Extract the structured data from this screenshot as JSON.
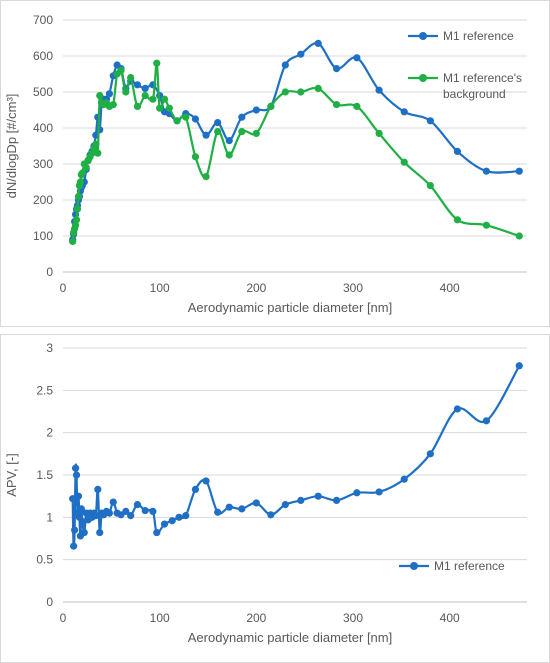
{
  "chart_data": [
    {
      "type": "line",
      "xlabel": "Aerodynamic particle diameter [nm]",
      "ylabel": "dN/dlogDp [#/cm³]",
      "xlim": [
        0,
        480
      ],
      "ylim": [
        0,
        700
      ],
      "xticks": [
        0,
        100,
        200,
        300,
        400
      ],
      "yticks": [
        0,
        100,
        200,
        300,
        400,
        500,
        600,
        700
      ],
      "grid": "horizontal",
      "legend_position": "top-right",
      "series": [
        {
          "name": "M1 reference",
          "color": "#1f6fc5",
          "x": [
            10,
            11,
            12,
            13,
            14,
            15,
            16,
            17,
            18,
            19,
            20,
            22,
            24,
            26,
            28,
            30,
            32,
            34,
            36,
            38,
            40,
            42,
            45,
            48,
            52,
            56,
            60,
            65,
            70,
            77,
            85,
            93,
            100,
            105,
            110,
            118,
            127,
            137,
            148,
            160,
            172,
            185,
            200,
            215,
            230,
            246,
            264,
            283,
            304,
            327,
            353,
            380,
            408,
            438,
            472
          ],
          "y": [
            90,
            105,
            140,
            160,
            175,
            185,
            200,
            210,
            225,
            235,
            240,
            250,
            285,
            310,
            325,
            335,
            350,
            380,
            430,
            395,
            470,
            480,
            480,
            495,
            545,
            575,
            565,
            510,
            530,
            520,
            510,
            520,
            490,
            445,
            440,
            420,
            440,
            425,
            380,
            415,
            365,
            430,
            450,
            460,
            575,
            605,
            635,
            565,
            595,
            505,
            445,
            420,
            335,
            280,
            280
          ]
        },
        {
          "name": "M1 reference's background",
          "color": "#1faf45",
          "x": [
            10,
            11,
            12,
            13,
            14,
            15,
            16,
            17,
            18,
            19,
            20,
            22,
            24,
            26,
            28,
            30,
            32,
            34,
            36,
            38,
            40,
            42,
            45,
            48,
            52,
            56,
            60,
            65,
            70,
            77,
            85,
            93,
            97,
            100,
            105,
            110,
            118,
            127,
            137,
            148,
            160,
            172,
            185,
            200,
            215,
            230,
            246,
            264,
            283,
            304,
            327,
            353,
            380,
            408,
            438,
            472
          ],
          "y": [
            85,
            110,
            120,
            130,
            145,
            175,
            210,
            240,
            250,
            270,
            275,
            300,
            290,
            310,
            320,
            330,
            345,
            355,
            330,
            490,
            470,
            465,
            470,
            460,
            465,
            550,
            560,
            500,
            540,
            460,
            490,
            480,
            580,
            455,
            480,
            455,
            420,
            430,
            320,
            265,
            390,
            325,
            390,
            385,
            460,
            500,
            500,
            510,
            465,
            460,
            385,
            305,
            240,
            145,
            130,
            100
          ]
        }
      ]
    },
    {
      "type": "line",
      "xlabel": "Aerodynamic particle diameter [nm]",
      "ylabel": "APV, [-]",
      "xlim": [
        0,
        480
      ],
      "ylim": [
        0,
        3
      ],
      "xticks": [
        0,
        100,
        200,
        300,
        400
      ],
      "yticks": [
        0,
        0.5,
        1,
        1.5,
        2,
        2.5,
        3
      ],
      "yticklabels": [
        "0",
        "0.5",
        "1",
        "1.5",
        "2",
        "2.5",
        "3"
      ],
      "grid": "horizontal",
      "legend_position": "bottom-right",
      "series": [
        {
          "name": "M1 reference",
          "color": "#1f6fc5",
          "x": [
            10,
            11,
            12,
            13,
            14,
            15,
            16,
            17,
            18,
            19,
            20,
            22,
            24,
            26,
            28,
            30,
            32,
            34,
            36,
            38,
            40,
            42,
            45,
            48,
            52,
            56,
            60,
            65,
            70,
            77,
            85,
            93,
            97,
            105,
            113,
            120,
            127,
            137,
            148,
            160,
            172,
            185,
            200,
            215,
            230,
            246,
            264,
            283,
            304,
            327,
            353,
            380,
            408,
            438,
            472
          ],
          "y": [
            1.22,
            0.66,
            0.85,
            1.58,
            1.5,
            1.05,
            1.25,
            1.0,
            0.78,
            1.1,
            0.95,
            0.82,
            1.05,
            0.97,
            1.05,
            1.0,
            1.05,
            1.02,
            1.33,
            0.82,
            1.05,
            1.03,
            1.07,
            1.05,
            1.18,
            1.05,
            1.03,
            1.07,
            1.02,
            1.15,
            1.08,
            1.07,
            0.82,
            0.92,
            0.96,
            1.0,
            1.02,
            1.33,
            1.43,
            1.06,
            1.12,
            1.1,
            1.17,
            1.03,
            1.15,
            1.2,
            1.25,
            1.2,
            1.29,
            1.3,
            1.45,
            1.75,
            2.28,
            2.14,
            2.79
          ]
        }
      ]
    }
  ]
}
